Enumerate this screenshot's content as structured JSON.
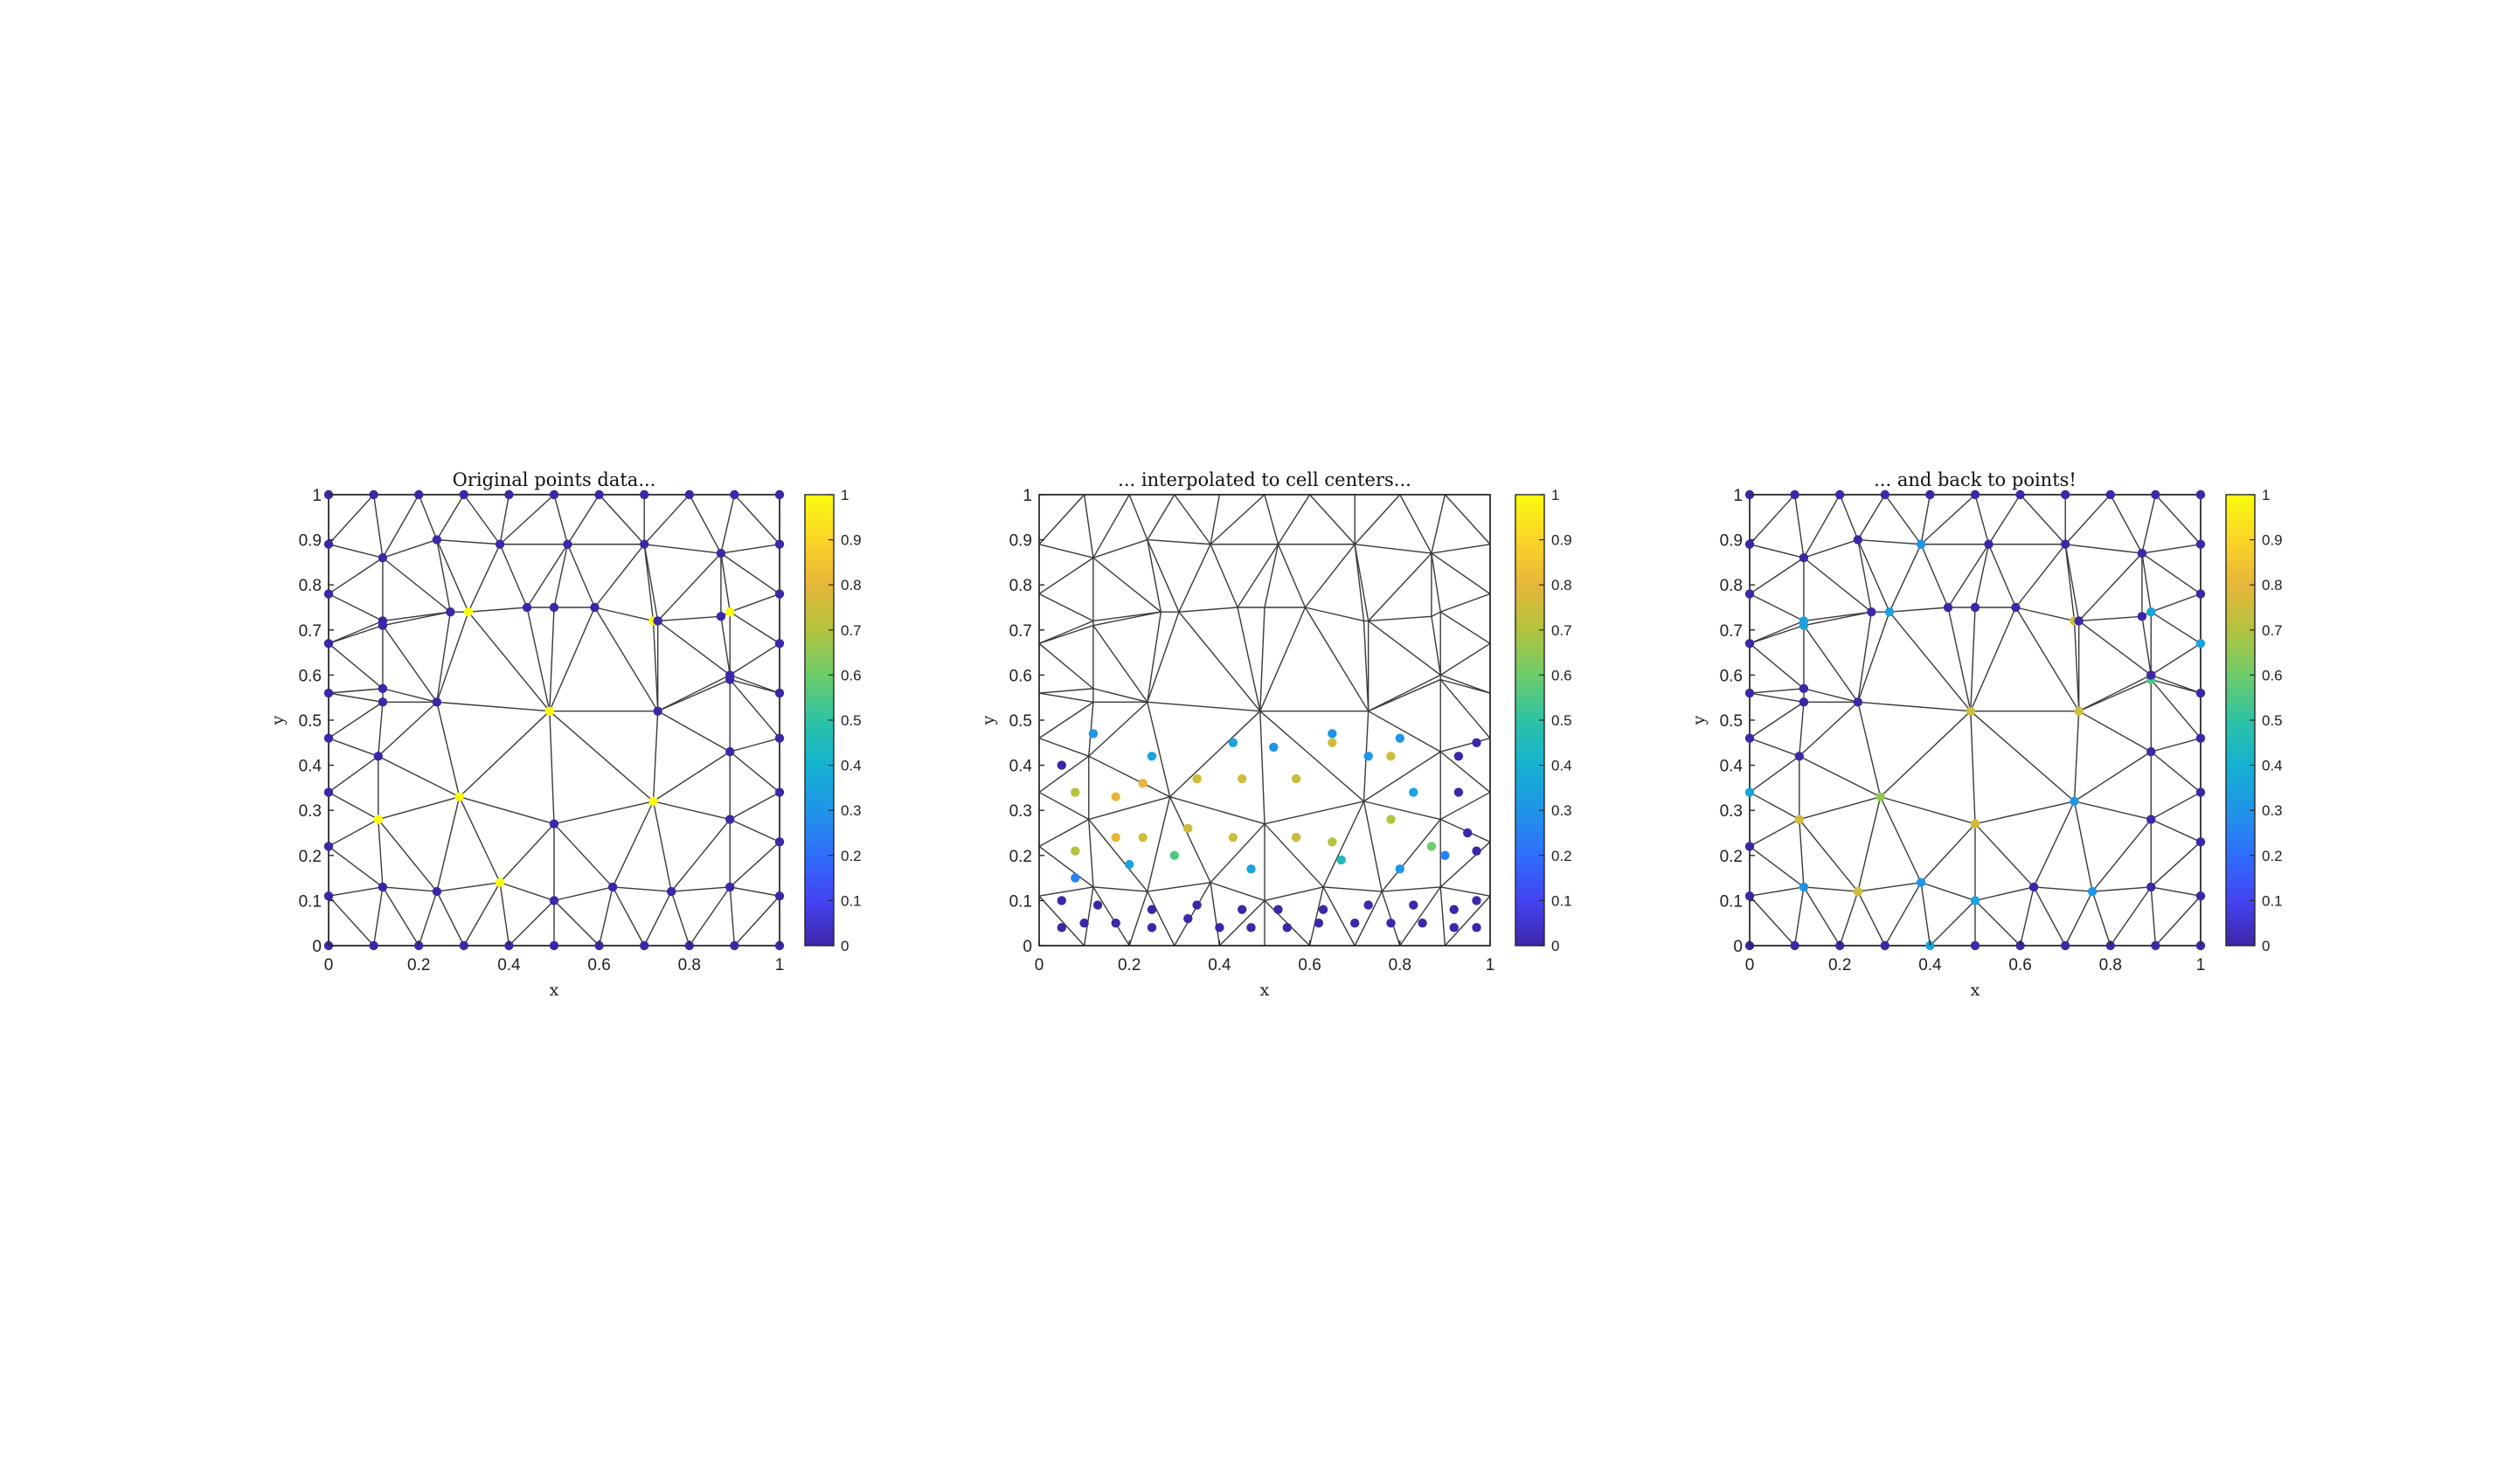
{
  "colors": {
    "mesh_edge": "#3a3a3a",
    "colormap": [
      "#3e26a8",
      "#4443f2",
      "#2f6efb",
      "#1f95e8",
      "#14b2d1",
      "#2dc3a4",
      "#6ecc6a",
      "#b3c33d",
      "#e6b63a",
      "#fbd526",
      "#f9fb0e"
    ]
  },
  "chart_data": [
    {
      "type": "scatter",
      "title": "Original points data...",
      "xlabel": "x",
      "ylabel": "y",
      "xlim": [
        0,
        1
      ],
      "ylim": [
        0,
        1
      ],
      "xticks": [
        "0",
        "0.2",
        "0.4",
        "0.6",
        "0.8",
        "1"
      ],
      "yticks": [
        "0",
        "0.1",
        "0.2",
        "0.3",
        "0.4",
        "0.5",
        "0.6",
        "0.7",
        "0.8",
        "0.9",
        "1"
      ],
      "colorbar": {
        "range": [
          0,
          1
        ],
        "ticks": [
          "0",
          "0.1",
          "0.2",
          "0.3",
          "0.4",
          "0.5",
          "0.6",
          "0.7",
          "0.8",
          "0.9",
          "1"
        ]
      },
      "mesh": "triangulated",
      "points_x": [
        0,
        0.1,
        0.2,
        0.3,
        0.4,
        0.5,
        0.6,
        0.7,
        0.8,
        0.9,
        1,
        0,
        0.1,
        0.2,
        0.3,
        0.4,
        0.5,
        0.6,
        0.7,
        0.8,
        0.9,
        1,
        0,
        0.12,
        0.24,
        0.38,
        0.5,
        0.63,
        0.76,
        0.89,
        1,
        0,
        0.11,
        0.29,
        0.5,
        0.72,
        0.89,
        1,
        0,
        0.11,
        0.89,
        1,
        0,
        0.12,
        0.24,
        0.49,
        0.73,
        0.89,
        1,
        0,
        0.12,
        0.89,
        1,
        0,
        0.12,
        0.31,
        0.5,
        0.72,
        0.89,
        1,
        0,
        0.12,
        0.27,
        0.44,
        0.59,
        0.73,
        0.87,
        1,
        0,
        0.12,
        0.24,
        0.38,
        0.53,
        0.7,
        0.87,
        1
      ],
      "points_y": [
        0,
        0,
        0,
        0,
        0,
        0,
        0,
        0,
        0,
        0,
        0,
        1,
        1,
        1,
        1,
        1,
        1,
        1,
        1,
        1,
        1,
        1,
        0.11,
        0.13,
        0.12,
        0.14,
        0.1,
        0.13,
        0.12,
        0.13,
        0.11,
        0.22,
        0.28,
        0.33,
        0.27,
        0.32,
        0.28,
        0.23,
        0.34,
        0.42,
        0.43,
        0.34,
        0.46,
        0.54,
        0.54,
        0.52,
        0.52,
        0.59,
        0.46,
        0.56,
        0.57,
        0.6,
        0.56,
        0.67,
        0.72,
        0.74,
        0.75,
        0.72,
        0.74,
        0.67,
        0.78,
        0.71,
        0.74,
        0.75,
        0.75,
        0.72,
        0.73,
        0.78,
        0.89,
        0.86,
        0.9,
        0.89,
        0.89,
        0.89,
        0.87,
        0.89
      ],
      "values": [
        0,
        0,
        0,
        0,
        0,
        0,
        0,
        0,
        0,
        0,
        0,
        0,
        0,
        0,
        0,
        0,
        0,
        0,
        0,
        0,
        0,
        0,
        0,
        0,
        0,
        1,
        0,
        0,
        0,
        0,
        0,
        0,
        1,
        1,
        0,
        1,
        0,
        0,
        0,
        0,
        0,
        0,
        0,
        0,
        0,
        1,
        0,
        0,
        0,
        0,
        0,
        0,
        0,
        0,
        0,
        1,
        0,
        1,
        1,
        0,
        0,
        0,
        0,
        0,
        0,
        0,
        0,
        0,
        0,
        0,
        0,
        0,
        0,
        0,
        0,
        0
      ]
    },
    {
      "type": "scatter",
      "title": "... interpolated to cell centers...",
      "xlabel": "x",
      "ylabel": "y",
      "xlim": [
        0,
        1
      ],
      "ylim": [
        0,
        1
      ],
      "xticks": [
        "0",
        "0.2",
        "0.4",
        "0.6",
        "0.8",
        "1"
      ],
      "yticks": [
        "0",
        "0.1",
        "0.2",
        "0.3",
        "0.4",
        "0.5",
        "0.6",
        "0.7",
        "0.8",
        "0.9",
        "1"
      ],
      "colorbar": {
        "range": [
          0,
          1
        ],
        "ticks": [
          "0",
          "0.1",
          "0.2",
          "0.3",
          "0.4",
          "0.5",
          "0.6",
          "0.7",
          "0.8",
          "0.9",
          "1"
        ]
      },
      "mesh": "triangulated",
      "points_x": [
        0.05,
        0.1,
        0.17,
        0.25,
        0.33,
        0.4,
        0.47,
        0.55,
        0.62,
        0.7,
        0.78,
        0.85,
        0.92,
        0.97,
        0.05,
        0.13,
        0.25,
        0.35,
        0.45,
        0.53,
        0.63,
        0.73,
        0.83,
        0.92,
        0.97,
        0.08,
        0.2,
        0.3,
        0.47,
        0.57,
        0.67,
        0.8,
        0.9,
        0.97,
        0.08,
        0.17,
        0.23,
        0.33,
        0.43,
        0.57,
        0.65,
        0.78,
        0.87,
        0.95,
        0.08,
        0.17,
        0.23,
        0.35,
        0.45,
        0.57,
        0.65,
        0.78,
        0.83,
        0.93,
        0.05,
        0.12,
        0.25,
        0.43,
        0.52,
        0.65,
        0.73,
        0.8,
        0.93,
        0.97
      ],
      "points_y": [
        0.04,
        0.05,
        0.05,
        0.04,
        0.06,
        0.04,
        0.04,
        0.04,
        0.05,
        0.05,
        0.05,
        0.05,
        0.04,
        0.04,
        0.1,
        0.09,
        0.08,
        0.09,
        0.08,
        0.08,
        0.08,
        0.09,
        0.09,
        0.08,
        0.1,
        0.15,
        0.18,
        0.2,
        0.17,
        0.24,
        0.19,
        0.17,
        0.2,
        0.21,
        0.21,
        0.24,
        0.24,
        0.26,
        0.24,
        0.24,
        0.23,
        0.28,
        0.22,
        0.25,
        0.34,
        0.33,
        0.36,
        0.37,
        0.37,
        0.37,
        0.45,
        0.42,
        0.34,
        0.34,
        0.4,
        0.47,
        0.42,
        0.45,
        0.44,
        0.47,
        0.42,
        0.46,
        0.42,
        0.45
      ],
      "values": [
        0,
        0,
        0,
        0,
        0,
        0,
        0,
        0,
        0,
        0,
        0,
        0,
        0,
        0,
        0,
        0,
        0,
        0,
        0,
        0,
        0,
        0,
        0,
        0,
        0,
        0.25,
        0.35,
        0.55,
        0.35,
        0.3,
        0.45,
        0.3,
        0.25,
        0,
        0.7,
        0.8,
        0.75,
        0.75,
        0.75,
        0.75,
        0.7,
        0.7,
        0.6,
        0,
        0.7,
        0.8,
        0.8,
        0.75,
        0.75,
        0.75,
        0.75,
        0.75,
        0.35,
        0,
        0,
        0.3,
        0.35,
        0.35,
        0.3,
        0.3,
        0.3,
        0.3,
        0,
        0
      ]
    },
    {
      "type": "scatter",
      "title": "... and back to points!",
      "xlabel": "x",
      "ylabel": "y",
      "xlim": [
        0,
        1
      ],
      "ylim": [
        0,
        1
      ],
      "xticks": [
        "0",
        "0.2",
        "0.4",
        "0.6",
        "0.8",
        "1"
      ],
      "yticks": [
        "0",
        "0.1",
        "0.2",
        "0.3",
        "0.4",
        "0.5",
        "0.6",
        "0.7",
        "0.8",
        "0.9",
        "1"
      ],
      "colorbar": {
        "range": [
          0,
          1
        ],
        "ticks": [
          "0",
          "0.1",
          "0.2",
          "0.3",
          "0.4",
          "0.5",
          "0.6",
          "0.7",
          "0.8",
          "0.9",
          "1"
        ]
      },
      "mesh": "triangulated",
      "points_x": [
        0,
        0.1,
        0.2,
        0.3,
        0.4,
        0.5,
        0.6,
        0.7,
        0.8,
        0.9,
        1,
        0,
        0.1,
        0.2,
        0.3,
        0.4,
        0.5,
        0.6,
        0.7,
        0.8,
        0.9,
        1,
        0,
        0.12,
        0.24,
        0.38,
        0.5,
        0.63,
        0.76,
        0.89,
        1,
        0,
        0.11,
        0.29,
        0.5,
        0.72,
        0.89,
        1,
        0,
        0.11,
        0.89,
        1,
        0,
        0.12,
        0.24,
        0.49,
        0.73,
        0.89,
        1,
        0,
        0.12,
        0.89,
        1,
        0,
        0.12,
        0.31,
        0.5,
        0.72,
        0.89,
        1,
        0,
        0.12,
        0.27,
        0.44,
        0.59,
        0.73,
        0.87,
        1,
        0,
        0.12,
        0.24,
        0.38,
        0.53,
        0.7,
        0.87,
        1
      ],
      "points_y": [
        0,
        0,
        0,
        0,
        0,
        0,
        0,
        0,
        0,
        0,
        0,
        1,
        1,
        1,
        1,
        1,
        1,
        1,
        1,
        1,
        1,
        1,
        0.11,
        0.13,
        0.12,
        0.14,
        0.1,
        0.13,
        0.12,
        0.13,
        0.11,
        0.22,
        0.28,
        0.33,
        0.27,
        0.32,
        0.28,
        0.23,
        0.34,
        0.42,
        0.43,
        0.34,
        0.46,
        0.54,
        0.54,
        0.52,
        0.52,
        0.59,
        0.46,
        0.56,
        0.57,
        0.6,
        0.56,
        0.67,
        0.72,
        0.74,
        0.75,
        0.72,
        0.74,
        0.67,
        0.78,
        0.71,
        0.74,
        0.75,
        0.75,
        0.72,
        0.73,
        0.78,
        0.89,
        0.86,
        0.9,
        0.89,
        0.89,
        0.89,
        0.87,
        0.89
      ],
      "values": [
        0,
        0,
        0,
        0,
        0.35,
        0,
        0,
        0,
        0,
        0,
        0,
        0,
        0,
        0,
        0,
        0,
        0,
        0,
        0,
        0,
        0,
        0,
        0,
        0.3,
        0.75,
        0.3,
        0.35,
        0,
        0.3,
        0,
        0,
        0,
        0.75,
        0.65,
        0.75,
        0.3,
        0,
        0,
        0.35,
        0,
        0,
        0,
        0,
        0,
        0,
        0.75,
        0.75,
        0.55,
        0,
        0,
        0,
        0,
        0,
        0,
        0.35,
        0.35,
        0,
        0.75,
        0.35,
        0.35,
        0,
        0.35,
        0,
        0,
        0,
        0,
        0,
        0,
        0,
        0,
        0,
        0.3,
        0,
        0,
        0,
        0
      ]
    }
  ]
}
